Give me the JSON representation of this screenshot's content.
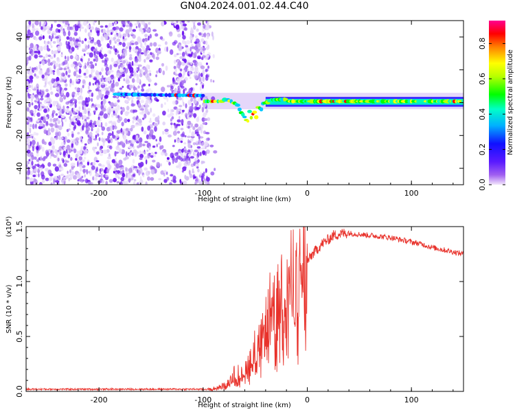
{
  "title": "GN04.2024.001.02.44.C40",
  "colors": {
    "snr_line": "#e8312a",
    "noise_purple": "#8a2be2",
    "frame": "#000000"
  },
  "chart_data": [
    {
      "type": "heatmap",
      "title": "",
      "xlabel": "Height of straight line (km)",
      "ylabel": "Frequency (Hz)",
      "xlim": [
        -270,
        150
      ],
      "ylim": [
        -50,
        50
      ],
      "x_ticks": [
        "-200",
        "-100",
        "0",
        "100"
      ],
      "y_ticks": [
        "40",
        "20",
        "0",
        "-20",
        "-40"
      ],
      "colorbar": {
        "label": "Normalized spectral amplitude",
        "range": [
          0,
          0.93
        ],
        "ticks": [
          "0.0",
          "0.2",
          "0.4",
          "0.6",
          "0.8"
        ],
        "colormap": "rainbow (purple → blue → cyan → green → yellow → red → magenta)"
      },
      "features": {
        "noise_region_x": [
          -270,
          -95
        ],
        "carrier_frequency_hz": 0,
        "strong_signal_start_x": -100,
        "scintillation_x": [
          -80,
          -20
        ],
        "dip_min_freq_hz": -12,
        "dip_center_x": -55
      }
    },
    {
      "type": "line",
      "title": "",
      "xlabel": "Height of straight line (km)",
      "ylabel": "SNR (10 * v/v)",
      "y_multiplier": "(x10⁴)",
      "xlim": [
        -270,
        150
      ],
      "ylim": [
        0,
        1.5
      ],
      "x_ticks": [
        "-200",
        "-100",
        "0",
        "100"
      ],
      "y_ticks": [
        "0.0",
        "0.5",
        "1.0",
        "1.5"
      ],
      "series": [
        {
          "x": [
            -270,
            -220,
            -170,
            -120,
            -95,
            -85,
            -75,
            -68,
            -62,
            -55,
            -48,
            -42,
            -38,
            -34,
            -30,
            -25,
            -20,
            -15,
            -10,
            -5,
            0,
            5,
            10,
            15,
            20,
            25,
            30,
            35,
            40,
            50,
            60,
            70,
            80,
            90,
            100,
            110,
            120,
            130,
            140,
            150
          ],
          "values": [
            0.02,
            0.02,
            0.02,
            0.02,
            0.02,
            0.04,
            0.08,
            0.2,
            0.15,
            0.3,
            0.45,
            0.5,
            0.7,
            0.8,
            0.75,
            0.95,
            1.0,
            1.02,
            1.05,
            1.1,
            1.18,
            1.25,
            1.3,
            1.35,
            1.38,
            1.42,
            1.43,
            1.44,
            1.44,
            1.43,
            1.42,
            1.41,
            1.4,
            1.38,
            1.36,
            1.34,
            1.31,
            1.29,
            1.27,
            1.25
          ]
        }
      ]
    }
  ]
}
